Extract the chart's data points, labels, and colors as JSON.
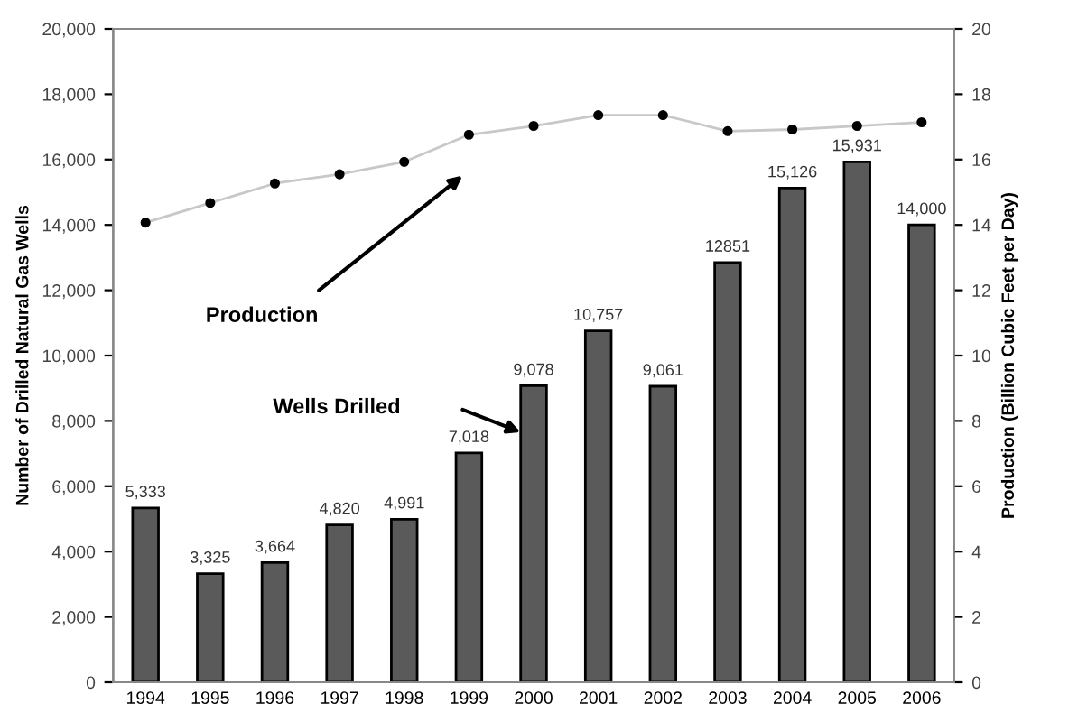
{
  "chart_data": {
    "type": "bar",
    "ylabel": "Number of Drilled Natural Gas Wells",
    "y2label": "Production (Billion Cubic Feet per Day)",
    "categories": [
      "1994",
      "1995",
      "1996",
      "1997",
      "1998",
      "1999",
      "2000",
      "2001",
      "2002",
      "2003",
      "2004",
      "2005",
      "2006"
    ],
    "series": [
      {
        "color": "#5a5a5a",
        "values": [
          5333,
          3325,
          3664,
          4820,
          4991,
          7018,
          9078,
          10757,
          9061,
          12851,
          15126,
          15931,
          14000
        ],
        "value_labels": [
          "5,333",
          "3,325",
          "3,664",
          "4,820",
          "4,991",
          "7,018",
          "9,078",
          "10,757",
          "9,061",
          "12851",
          "15,126",
          "15,931",
          "14,000"
        ]
      },
      {
        "type": "line",
        "axis": "y2",
        "color": "#c8c8c8",
        "marker": "circle",
        "values": [
          14.07,
          14.67,
          15.27,
          15.55,
          15.93,
          16.76,
          17.03,
          17.36,
          17.36,
          16.87,
          16.92,
          17.03,
          17.14
        ]
      }
    ],
    "ylim": [
      0,
      20000
    ],
    "yticks": [
      {
        "value": 0,
        "label": "0"
      },
      {
        "value": 2000,
        "label": "2,000"
      },
      {
        "value": 4000,
        "label": "4,000"
      },
      {
        "value": 6000,
        "label": "6,000"
      },
      {
        "value": 8000,
        "label": "8,000"
      },
      {
        "value": 10000,
        "label": "10,000"
      },
      {
        "value": 12000,
        "label": "12,000"
      },
      {
        "value": 14000,
        "label": "14,000"
      },
      {
        "value": 16000,
        "label": "16,000"
      },
      {
        "value": 18000,
        "label": "18,000"
      },
      {
        "value": 20000,
        "label": "20,000"
      }
    ],
    "y2lim": [
      0,
      20
    ],
    "y2ticks": [
      0,
      2,
      4,
      6,
      8,
      10,
      12,
      14,
      16,
      18,
      20
    ],
    "annotations": [
      "Production",
      "Wells Drilled"
    ],
    "grid": false,
    "legend": false
  }
}
